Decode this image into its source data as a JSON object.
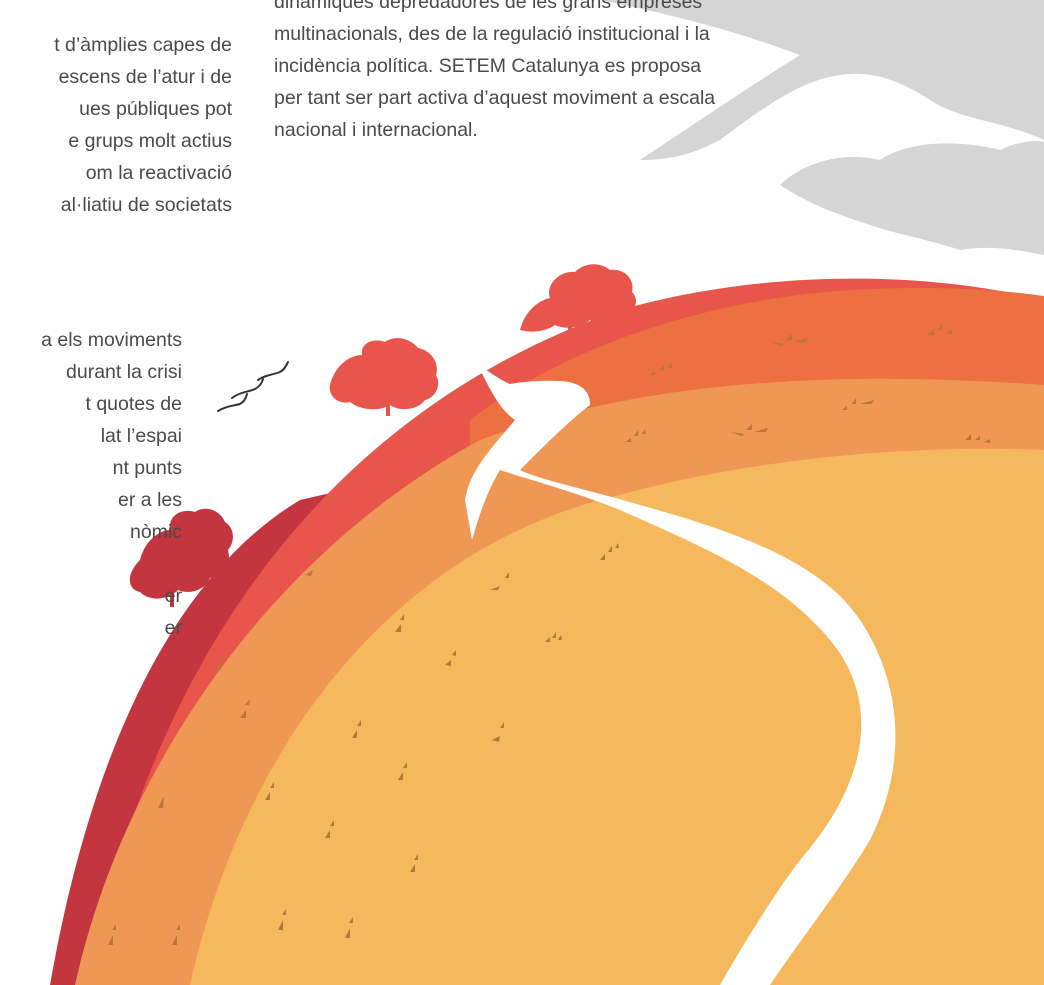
{
  "left_column": {
    "paragraph_1": [
      "t d’àmplies capes de",
      "escens de l’atur i de",
      "ues públiques pot",
      "e grups molt actius",
      "om la reactivació",
      "al·liatiu de societats"
    ],
    "paragraph_2": [
      "a els moviments",
      "durant la crisi",
      "t quotes de",
      "lat l’espai",
      "nt punts",
      "er a les",
      "nòmic",
      "",
      "er",
      "er"
    ]
  },
  "right_column": {
    "lines": [
      "dinàmiques depredadores de les grans empreses",
      "multinacionals, des de la regulació institucional i la",
      "incidència política. SETEM Catalunya es proposa",
      "per tant ser part activa d’aquest moviment a escala",
      "nacional i internacional."
    ]
  },
  "illustration": {
    "description_icon": "hill-landscape-illustration",
    "colors": {
      "sky_cloud": "#d5d5d5",
      "hill_dark_red": "#c3363f",
      "hill_red": "#e8554a",
      "hill_orange": "#ec7041",
      "hill_light_orange": "#ef9855",
      "hill_yellow": "#f5b85d",
      "grass_marks": "#b7773a",
      "trees": "#e8554a",
      "path": "#ffffff",
      "birds": "#333333"
    }
  }
}
